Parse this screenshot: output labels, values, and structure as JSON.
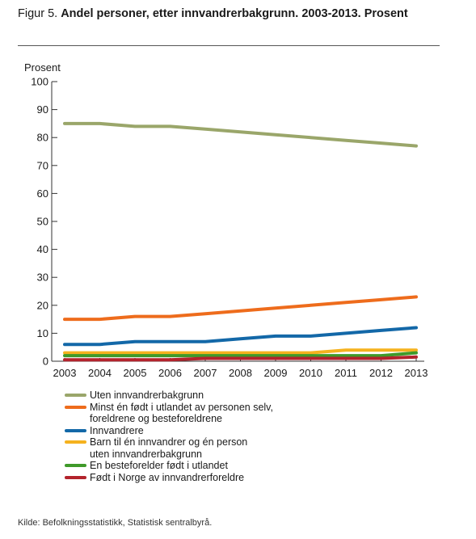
{
  "figure": {
    "prefix": "Figur 5.",
    "title": "Andel personer, etter innvandrerbakgrunn. 2003-2013. Prosent"
  },
  "source": "Kilde: Befolkningsstatistikk, Statistisk sentralbyrå.",
  "chart_data": {
    "type": "line",
    "title": "Andel personer, etter innvandrerbakgrunn. 2003-2013. Prosent",
    "ylabel": "Prosent",
    "xlabel": "",
    "ylim": [
      0,
      100
    ],
    "yticks": [
      0,
      10,
      20,
      30,
      40,
      50,
      60,
      70,
      80,
      90,
      100
    ],
    "ytick_labels": [
      "0",
      "10",
      "20",
      "30",
      "40",
      "50",
      "60",
      "70",
      "80",
      "90",
      "100"
    ],
    "categories": [
      "2003",
      "2004",
      "2005",
      "2006",
      "2007",
      "2008",
      "2009",
      "2010",
      "2011",
      "2012",
      "2013"
    ],
    "grid": false,
    "legend_position": "bottom",
    "series": [
      {
        "name": "Uten innvandrerbakgrunn",
        "color": "#9aa66a",
        "values": [
          85,
          85,
          84,
          84,
          83,
          82,
          81,
          80,
          79,
          78,
          77
        ]
      },
      {
        "name": "Minst én født i utlandet av personen selv,\nforeldrene og besteforeldrene",
        "color": "#ee6c1c",
        "values": [
          15,
          15,
          16,
          16,
          17,
          18,
          19,
          20,
          21,
          22,
          23
        ]
      },
      {
        "name": "Innvandrere",
        "color": "#1368a8",
        "values": [
          6,
          6,
          7,
          7,
          7,
          8,
          9,
          9,
          10,
          11,
          12
        ]
      },
      {
        "name": "Barn til én innvandrer og én person\nuten innvandrerbakgrunn",
        "color": "#f5b21e",
        "values": [
          3,
          3,
          3,
          3,
          3,
          3,
          3,
          3,
          4,
          4,
          4
        ]
      },
      {
        "name": "En besteforelder født i utlandet",
        "color": "#3f9a2a",
        "values": [
          2,
          2,
          2,
          2,
          2,
          2,
          2,
          2,
          2,
          2,
          3
        ]
      },
      {
        "name": "Født i Norge av innvandrerforeldre",
        "color": "#b3232c",
        "values": [
          0.5,
          0.5,
          0.5,
          0.5,
          1,
          1,
          1,
          1,
          1,
          1,
          1.5
        ]
      }
    ]
  }
}
